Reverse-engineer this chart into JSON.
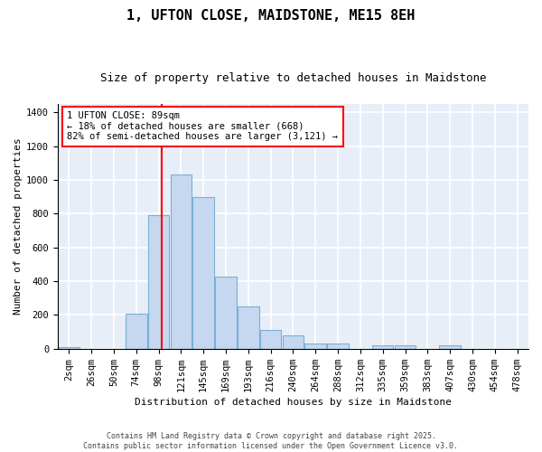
{
  "title": "1, UFTON CLOSE, MAIDSTONE, ME15 8EH",
  "subtitle": "Size of property relative to detached houses in Maidstone",
  "xlabel": "Distribution of detached houses by size in Maidstone",
  "ylabel": "Number of detached properties",
  "bar_color": "#c5d8f0",
  "bar_edge_color": "#7bafd4",
  "background_color": "#e8eef8",
  "grid_color": "#ffffff",
  "categories": [
    "2sqm",
    "26sqm",
    "50sqm",
    "74sqm",
    "98sqm",
    "121sqm",
    "145sqm",
    "169sqm",
    "193sqm",
    "216sqm",
    "240sqm",
    "264sqm",
    "288sqm",
    "312sqm",
    "335sqm",
    "359sqm",
    "383sqm",
    "407sqm",
    "430sqm",
    "454sqm",
    "478sqm"
  ],
  "values": [
    10,
    0,
    0,
    210,
    790,
    1030,
    900,
    430,
    250,
    110,
    80,
    30,
    30,
    0,
    20,
    20,
    0,
    20,
    0,
    0,
    0
  ],
  "ylim": [
    0,
    1450
  ],
  "yticks": [
    0,
    200,
    400,
    600,
    800,
    1000,
    1200,
    1400
  ],
  "annotation_text": "1 UFTON CLOSE: 89sqm\n← 18% of detached houses are smaller (668)\n82% of semi-detached houses are larger (3,121) →",
  "footer_text": "Contains HM Land Registry data © Crown copyright and database right 2025.\nContains public sector information licensed under the Open Government Licence v3.0.",
  "title_fontsize": 11,
  "subtitle_fontsize": 9,
  "axis_fontsize": 8,
  "tick_fontsize": 7.5
}
